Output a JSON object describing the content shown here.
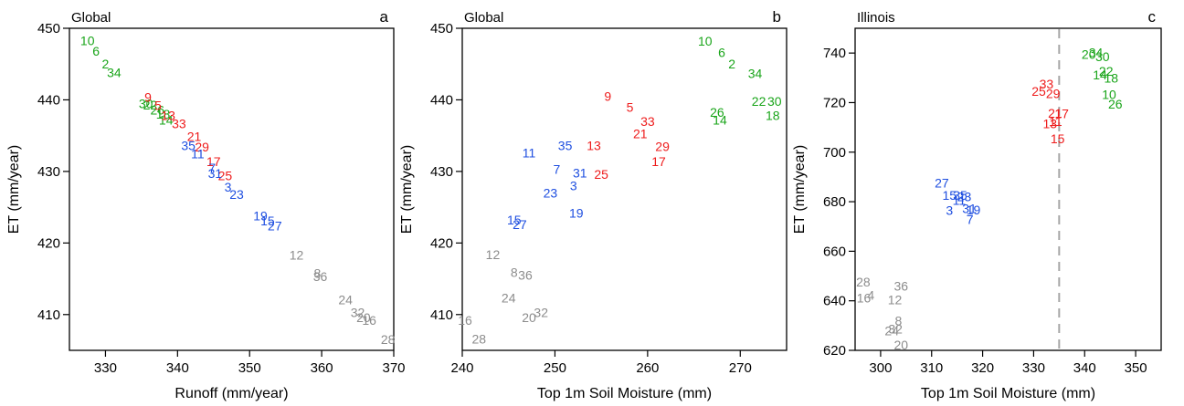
{
  "colors": {
    "green": "#1aa51a",
    "red": "#ee1c1c",
    "blue": "#1f4fe0",
    "gray": "#8c8c8c"
  },
  "chart_data": [
    {
      "id": "a",
      "type": "scatter",
      "title": "Global",
      "letter": "a",
      "xlabel": "Runoff (mm/year)",
      "ylabel": "ET (mm/year)",
      "xlim": [
        325,
        370
      ],
      "ylim": [
        405,
        450
      ],
      "xticks": [
        330,
        340,
        350,
        360,
        370
      ],
      "yticks": [
        410,
        420,
        430,
        440,
        450
      ],
      "points": [
        {
          "label": "10",
          "x": 327.5,
          "y": 448.3,
          "color": "green"
        },
        {
          "label": "6",
          "x": 328.7,
          "y": 446.8,
          "color": "green"
        },
        {
          "label": "2",
          "x": 330.0,
          "y": 445.0,
          "color": "green"
        },
        {
          "label": "34",
          "x": 331.2,
          "y": 443.8,
          "color": "green"
        },
        {
          "label": "30",
          "x": 335.6,
          "y": 439.5,
          "color": "green"
        },
        {
          "label": "22",
          "x": 336.2,
          "y": 439.3,
          "color": "green"
        },
        {
          "label": "26",
          "x": 337.2,
          "y": 438.6,
          "color": "green"
        },
        {
          "label": "18",
          "x": 338.0,
          "y": 438.0,
          "color": "green"
        },
        {
          "label": "14",
          "x": 338.4,
          "y": 437.2,
          "color": "green"
        },
        {
          "label": "9",
          "x": 335.9,
          "y": 440.4,
          "color": "red"
        },
        {
          "label": "5",
          "x": 337.3,
          "y": 439.2,
          "color": "red"
        },
        {
          "label": "13",
          "x": 338.7,
          "y": 437.8,
          "color": "red"
        },
        {
          "label": "33",
          "x": 340.2,
          "y": 436.7,
          "color": "red"
        },
        {
          "label": "21",
          "x": 342.3,
          "y": 434.9,
          "color": "red"
        },
        {
          "label": "29",
          "x": 343.4,
          "y": 433.4,
          "color": "red"
        },
        {
          "label": "17",
          "x": 345.0,
          "y": 431.4,
          "color": "red"
        },
        {
          "label": "25",
          "x": 346.6,
          "y": 429.4,
          "color": "red"
        },
        {
          "label": "35",
          "x": 341.5,
          "y": 433.6,
          "color": "blue"
        },
        {
          "label": "11",
          "x": 342.8,
          "y": 432.5,
          "color": "blue"
        },
        {
          "label": "7",
          "x": 344.8,
          "y": 430.5,
          "color": "blue"
        },
        {
          "label": "31",
          "x": 345.2,
          "y": 429.7,
          "color": "blue"
        },
        {
          "label": "3",
          "x": 347.0,
          "y": 427.8,
          "color": "blue"
        },
        {
          "label": "23",
          "x": 348.2,
          "y": 426.8,
          "color": "blue"
        },
        {
          "label": "19",
          "x": 351.5,
          "y": 423.8,
          "color": "blue"
        },
        {
          "label": "15",
          "x": 352.5,
          "y": 423.1,
          "color": "blue"
        },
        {
          "label": "27",
          "x": 353.5,
          "y": 422.4,
          "color": "blue"
        },
        {
          "label": "12",
          "x": 356.5,
          "y": 418.3,
          "color": "gray"
        },
        {
          "label": "8",
          "x": 359.4,
          "y": 415.8,
          "color": "gray"
        },
        {
          "label": "36",
          "x": 359.8,
          "y": 415.3,
          "color": "gray"
        },
        {
          "label": "24",
          "x": 363.3,
          "y": 412.1,
          "color": "gray"
        },
        {
          "label": "32",
          "x": 365.0,
          "y": 410.3,
          "color": "gray"
        },
        {
          "label": "20",
          "x": 365.8,
          "y": 409.6,
          "color": "gray"
        },
        {
          "label": "16",
          "x": 366.6,
          "y": 409.2,
          "color": "gray"
        },
        {
          "label": "28",
          "x": 369.2,
          "y": 406.5,
          "color": "gray"
        }
      ]
    },
    {
      "id": "b",
      "type": "scatter",
      "title": "Global",
      "letter": "b",
      "xlabel": "Top 1m Soil Moisture (mm)",
      "ylabel": "ET (mm/year)",
      "xlim": [
        240,
        275
      ],
      "ylim": [
        405,
        450
      ],
      "xticks": [
        240,
        250,
        260,
        270
      ],
      "yticks": [
        410,
        420,
        430,
        440,
        450
      ],
      "points": [
        {
          "label": "10",
          "x": 266.2,
          "y": 448.2,
          "color": "green"
        },
        {
          "label": "6",
          "x": 268.0,
          "y": 446.6,
          "color": "green"
        },
        {
          "label": "2",
          "x": 269.1,
          "y": 445.0,
          "color": "green"
        },
        {
          "label": "34",
          "x": 271.6,
          "y": 443.7,
          "color": "green"
        },
        {
          "label": "26",
          "x": 267.5,
          "y": 438.3,
          "color": "green"
        },
        {
          "label": "14",
          "x": 267.8,
          "y": 437.2,
          "color": "green"
        },
        {
          "label": "22",
          "x": 272.0,
          "y": 439.8,
          "color": "green"
        },
        {
          "label": "30",
          "x": 273.7,
          "y": 439.8,
          "color": "green"
        },
        {
          "label": "18",
          "x": 273.5,
          "y": 437.8,
          "color": "green"
        },
        {
          "label": "9",
          "x": 255.7,
          "y": 440.5,
          "color": "red"
        },
        {
          "label": "5",
          "x": 258.1,
          "y": 439.0,
          "color": "red"
        },
        {
          "label": "33",
          "x": 260.0,
          "y": 437.0,
          "color": "red"
        },
        {
          "label": "21",
          "x": 259.2,
          "y": 435.3,
          "color": "red"
        },
        {
          "label": "13",
          "x": 254.2,
          "y": 433.6,
          "color": "red"
        },
        {
          "label": "29",
          "x": 261.6,
          "y": 433.5,
          "color": "red"
        },
        {
          "label": "17",
          "x": 261.2,
          "y": 431.4,
          "color": "red"
        },
        {
          "label": "25",
          "x": 255.0,
          "y": 429.6,
          "color": "red"
        },
        {
          "label": "35",
          "x": 251.1,
          "y": 433.6,
          "color": "blue"
        },
        {
          "label": "11",
          "x": 247.2,
          "y": 432.6,
          "color": "blue"
        },
        {
          "label": "7",
          "x": 250.2,
          "y": 430.3,
          "color": "blue"
        },
        {
          "label": "31",
          "x": 252.7,
          "y": 429.8,
          "color": "blue"
        },
        {
          "label": "3",
          "x": 252.0,
          "y": 428.0,
          "color": "blue"
        },
        {
          "label": "23",
          "x": 249.5,
          "y": 427.0,
          "color": "blue"
        },
        {
          "label": "19",
          "x": 252.3,
          "y": 424.2,
          "color": "blue"
        },
        {
          "label": "15",
          "x": 245.6,
          "y": 423.2,
          "color": "blue"
        },
        {
          "label": "27",
          "x": 246.2,
          "y": 422.6,
          "color": "blue"
        },
        {
          "label": "12",
          "x": 243.3,
          "y": 418.4,
          "color": "gray"
        },
        {
          "label": "8",
          "x": 245.6,
          "y": 415.9,
          "color": "gray"
        },
        {
          "label": "36",
          "x": 246.8,
          "y": 415.5,
          "color": "gray"
        },
        {
          "label": "24",
          "x": 245.0,
          "y": 412.3,
          "color": "gray"
        },
        {
          "label": "32",
          "x": 248.5,
          "y": 410.3,
          "color": "gray"
        },
        {
          "label": "20",
          "x": 247.2,
          "y": 409.6,
          "color": "gray"
        },
        {
          "label": "16",
          "x": 240.3,
          "y": 409.2,
          "color": "gray"
        },
        {
          "label": "28",
          "x": 241.8,
          "y": 406.6,
          "color": "gray"
        }
      ]
    },
    {
      "id": "c",
      "type": "scatter",
      "title": "Illinois",
      "letter": "c",
      "xlabel": "Top 1m Soil Moisture (mm)",
      "ylabel": "ET (mm/year)",
      "xlim": [
        295,
        355
      ],
      "ylim": [
        620,
        750
      ],
      "xticks": [
        300,
        310,
        320,
        330,
        340,
        350
      ],
      "yticks": [
        620,
        640,
        660,
        680,
        700,
        720,
        740
      ],
      "vline": 335,
      "points": [
        {
          "label": "20",
          "x": 340.8,
          "y": 739.5,
          "color": "green"
        },
        {
          "label": "34",
          "x": 342.2,
          "y": 740.2,
          "color": "green"
        },
        {
          "label": "30",
          "x": 343.5,
          "y": 738.5,
          "color": "green"
        },
        {
          "label": "22",
          "x": 344.2,
          "y": 732.6,
          "color": "green"
        },
        {
          "label": "14",
          "x": 343.0,
          "y": 731.2,
          "color": "green"
        },
        {
          "label": "18",
          "x": 345.2,
          "y": 730.0,
          "color": "green"
        },
        {
          "label": "10",
          "x": 344.8,
          "y": 723.3,
          "color": "green"
        },
        {
          "label": "26",
          "x": 346.0,
          "y": 719.5,
          "color": "green"
        },
        {
          "label": "33",
          "x": 332.5,
          "y": 727.5,
          "color": "red"
        },
        {
          "label": "25",
          "x": 331.0,
          "y": 724.5,
          "color": "red"
        },
        {
          "label": "29",
          "x": 333.8,
          "y": 723.6,
          "color": "red"
        },
        {
          "label": "21",
          "x": 334.2,
          "y": 715.7,
          "color": "red"
        },
        {
          "label": "17",
          "x": 335.5,
          "y": 715.5,
          "color": "red"
        },
        {
          "label": "13",
          "x": 333.2,
          "y": 711.5,
          "color": "red"
        },
        {
          "label": "11",
          "x": 334.3,
          "y": 712.5,
          "color": "red"
        },
        {
          "label": "15",
          "x": 334.7,
          "y": 705.4,
          "color": "red"
        },
        {
          "label": "27",
          "x": 312.0,
          "y": 687.5,
          "color": "blue"
        },
        {
          "label": "15",
          "x": 313.5,
          "y": 682.6,
          "color": "blue"
        },
        {
          "label": "35",
          "x": 315.6,
          "y": 682.6,
          "color": "blue"
        },
        {
          "label": "23",
          "x": 316.4,
          "y": 682.0,
          "color": "blue"
        },
        {
          "label": "11",
          "x": 315.4,
          "y": 680.6,
          "color": "blue"
        },
        {
          "label": "19",
          "x": 318.2,
          "y": 676.8,
          "color": "blue"
        },
        {
          "label": "31",
          "x": 317.4,
          "y": 677.2,
          "color": "blue"
        },
        {
          "label": "3",
          "x": 313.5,
          "y": 676.5,
          "color": "blue"
        },
        {
          "label": "7",
          "x": 317.5,
          "y": 672.8,
          "color": "blue"
        },
        {
          "label": "28",
          "x": 296.6,
          "y": 647.6,
          "color": "gray"
        },
        {
          "label": "36",
          "x": 304.0,
          "y": 645.9,
          "color": "gray"
        },
        {
          "label": "4",
          "x": 298.1,
          "y": 642.2,
          "color": "gray"
        },
        {
          "label": "16",
          "x": 296.7,
          "y": 641.2,
          "color": "gray"
        },
        {
          "label": "12",
          "x": 302.8,
          "y": 640.5,
          "color": "gray"
        },
        {
          "label": "8",
          "x": 303.5,
          "y": 632.0,
          "color": "gray"
        },
        {
          "label": "32",
          "x": 302.9,
          "y": 628.7,
          "color": "gray"
        },
        {
          "label": "24",
          "x": 302.2,
          "y": 628.0,
          "color": "gray"
        },
        {
          "label": "20",
          "x": 304.0,
          "y": 622.2,
          "color": "gray"
        }
      ]
    }
  ]
}
